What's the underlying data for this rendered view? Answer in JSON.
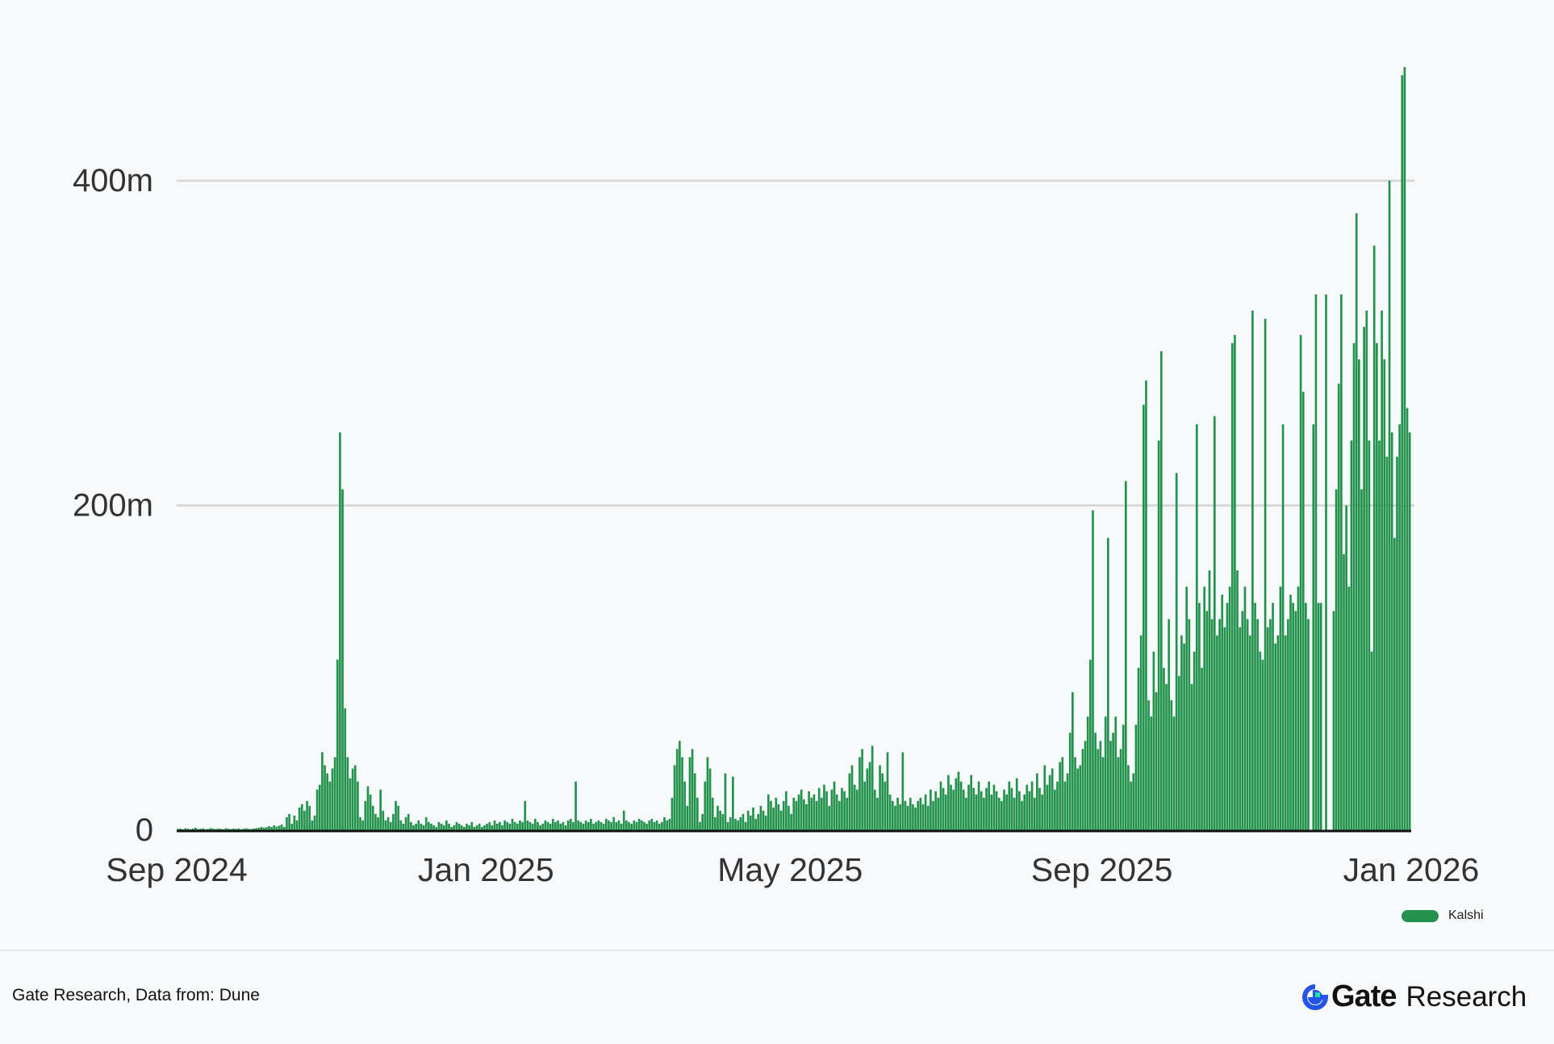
{
  "chart_data": {
    "type": "bar",
    "title": "",
    "xlabel": "",
    "ylabel": "",
    "date_range": [
      "2024-09-01",
      "2025-12-31"
    ],
    "x_ticks": [
      "Sep 2024",
      "Jan 2025",
      "May 2025",
      "Sep 2025",
      "Jan 2026"
    ],
    "y_ticks": [
      "0",
      "200m",
      "400m"
    ],
    "ylim": [
      0,
      480
    ],
    "y_unit": "millions",
    "grid": "horizontal",
    "legend_position": "bottom-right",
    "series": [
      {
        "name": "Kalshi",
        "color": "#22924c",
        "values": [
          0.8,
          1,
          0.5,
          1.2,
          0.9,
          0.6,
          1,
          1.5,
          0.7,
          0.9,
          1.1,
          0.6,
          0.8,
          1.3,
          0.9,
          0.7,
          1,
          0.8,
          0.6,
          1.2,
          0.9,
          0.7,
          1,
          0.8,
          1.1,
          0.6,
          0.9,
          1.2,
          0.8,
          0.7,
          1,
          1.3,
          1.5,
          2,
          1.6,
          1.8,
          2.5,
          2,
          3,
          2.2,
          2.8,
          3.5,
          2,
          8,
          10,
          4,
          9,
          6,
          14,
          16,
          12,
          18,
          15,
          6,
          9,
          25,
          28,
          48,
          40,
          35,
          30,
          38,
          45,
          105,
          245,
          210,
          75,
          45,
          32,
          38,
          40,
          30,
          8,
          6,
          18,
          27,
          22,
          15,
          10,
          8,
          25,
          12,
          6,
          8,
          5,
          10,
          18,
          15,
          6,
          4,
          8,
          10,
          5,
          3,
          4,
          6,
          4,
          3,
          8,
          5,
          4,
          3,
          2,
          5,
          4,
          3,
          6,
          4,
          2,
          3,
          5,
          4,
          3,
          2,
          4,
          3,
          5,
          2,
          3,
          4,
          2,
          3,
          4,
          5,
          3,
          6,
          4,
          5,
          3,
          6,
          5,
          4,
          7,
          5,
          4,
          6,
          5,
          18,
          6,
          5,
          4,
          7,
          5,
          3,
          4,
          6,
          5,
          4,
          7,
          5,
          6,
          4,
          5,
          3,
          6,
          7,
          5,
          30,
          6,
          5,
          4,
          6,
          5,
          7,
          4,
          5,
          6,
          5,
          4,
          7,
          6,
          5,
          8,
          5,
          6,
          4,
          12,
          6,
          5,
          4,
          6,
          5,
          7,
          6,
          5,
          4,
          6,
          7,
          5,
          6,
          4,
          5,
          8,
          6,
          7,
          20,
          40,
          50,
          55,
          45,
          30,
          15,
          45,
          50,
          35,
          20,
          5,
          10,
          30,
          45,
          38,
          20,
          8,
          15,
          12,
          10,
          35,
          5,
          8,
          33,
          7,
          6,
          8,
          10,
          5,
          12,
          9,
          14,
          7,
          10,
          15,
          12,
          9,
          22,
          18,
          14,
          20,
          16,
          12,
          18,
          24,
          15,
          10,
          20,
          18,
          22,
          25,
          19,
          16,
          24,
          20,
          22,
          18,
          26,
          20,
          28,
          24,
          15,
          25,
          30,
          22,
          18,
          26,
          24,
          20,
          35,
          40,
          28,
          25,
          45,
          50,
          30,
          38,
          42,
          52,
          25,
          20,
          40,
          35,
          30,
          48,
          22,
          18,
          15,
          20,
          16,
          48,
          18,
          15,
          20,
          16,
          14,
          18,
          20,
          16,
          22,
          15,
          25,
          18,
          24,
          20,
          30,
          26,
          22,
          34,
          28,
          25,
          32,
          36,
          30,
          25,
          20,
          28,
          34,
          26,
          22,
          30,
          24,
          20,
          26,
          30,
          22,
          28,
          24,
          20,
          18,
          25,
          22,
          30,
          26,
          20,
          32,
          24,
          18,
          22,
          28,
          24,
          30,
          20,
          35,
          26,
          22,
          40,
          28,
          34,
          38,
          25,
          30,
          42,
          45,
          30,
          35,
          60,
          85,
          45,
          38,
          40,
          50,
          55,
          70,
          105,
          197,
          60,
          50,
          55,
          45,
          70,
          180,
          55,
          60,
          70,
          45,
          50,
          65,
          215,
          40,
          30,
          35,
          65,
          100,
          120,
          262,
          277,
          80,
          70,
          110,
          85,
          240,
          295,
          100,
          90,
          130,
          80,
          70,
          220,
          95,
          120,
          115,
          150,
          130,
          90,
          110,
          250,
          140,
          100,
          150,
          135,
          160,
          130,
          255,
          120,
          130,
          145,
          125,
          140,
          150,
          300,
          305,
          160,
          125,
          135,
          150,
          130,
          120,
          320,
          140,
          130,
          110,
          105,
          315,
          125,
          130,
          140,
          115,
          120,
          150,
          250,
          120,
          130,
          145,
          140,
          135,
          150,
          305,
          270,
          140,
          130,
          0,
          250,
          330,
          140,
          140,
          0,
          330,
          0,
          0,
          135,
          210,
          275,
          330,
          170,
          200,
          150,
          240,
          300,
          380,
          290,
          210,
          310,
          320,
          240,
          110,
          360,
          300,
          240,
          320,
          290,
          230,
          400,
          245,
          180,
          230,
          250,
          465,
          470,
          260,
          245
        ]
      }
    ]
  },
  "footer": {
    "source": "Gate Research, Data from: Dune",
    "brand_name": "Gate",
    "brand_suffix": "Research",
    "brand_colors": [
      "#2354e6",
      "#17e5a0"
    ]
  }
}
